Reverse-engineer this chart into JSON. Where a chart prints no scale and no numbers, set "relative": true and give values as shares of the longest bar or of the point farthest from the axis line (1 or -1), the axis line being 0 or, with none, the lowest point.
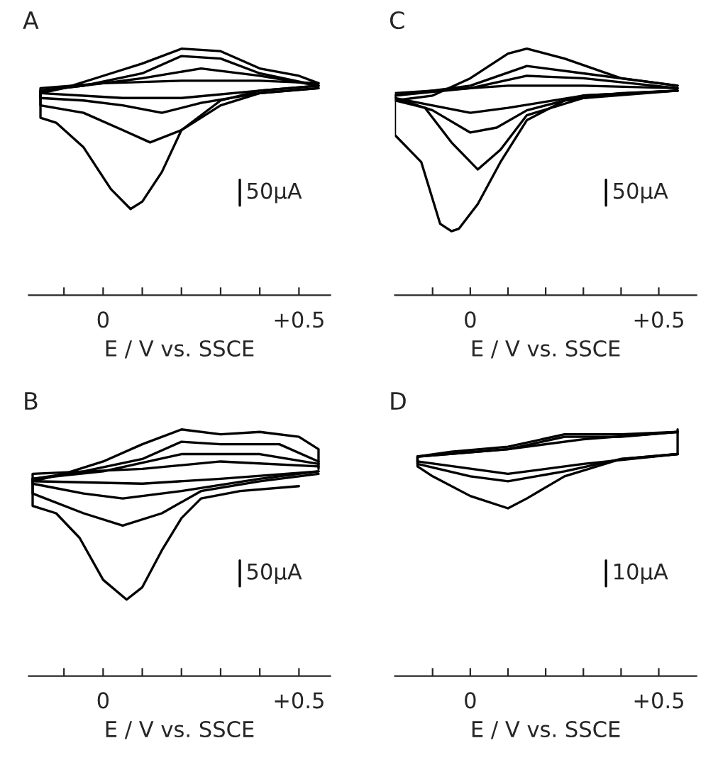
{
  "chart_data": [
    {
      "type": "line",
      "title": "A",
      "xlabel": "E / V vs. SSCE",
      "relative": true,
      "xlim": [
        -0.19,
        0.58
      ],
      "xticks": [
        {
          "value": -0.1,
          "label": null
        },
        0,
        {
          "value": 0.1,
          "label": null
        },
        {
          "value": 0.2,
          "label": null
        },
        {
          "value": 0.3,
          "label": null
        },
        {
          "value": 0.4,
          "label": null
        },
        {
          "value": 0.5,
          "label": "+0.5"
        }
      ],
      "grid": false,
      "legend": false,
      "marker": "none",
      "line_style": "solid",
      "annotations": [
        "50μA"
      ],
      "series": [
        {
          "color": "#000000",
          "x": [
            0.55,
            0.4,
            0.3,
            0.2,
            0.15,
            0.1,
            0.07,
            0.02,
            -0.05,
            -0.12,
            -0.16,
            -0.16,
            -0.1,
            0.0,
            0.1,
            0.2,
            0.3,
            0.4,
            0.5,
            0.55
          ],
          "values": [
            0.85,
            0.83,
            0.79,
            0.67,
            0.5,
            0.38,
            0.35,
            0.43,
            0.6,
            0.7,
            0.72,
            0.82,
            0.84,
            0.89,
            0.94,
            1.0,
            0.99,
            0.92,
            0.89,
            0.86
          ]
        },
        {
          "color": "#000000",
          "x": [
            0.55,
            0.4,
            0.3,
            0.2,
            0.12,
            0.05,
            -0.05,
            -0.16,
            -0.16,
            -0.05,
            0.1,
            0.2,
            0.3,
            0.4,
            0.55
          ],
          "values": [
            0.84,
            0.82,
            0.77,
            0.67,
            0.62,
            0.67,
            0.74,
            0.77,
            0.83,
            0.85,
            0.9,
            0.97,
            0.96,
            0.9,
            0.85
          ]
        },
        {
          "color": "#000000",
          "x": [
            0.55,
            0.4,
            0.25,
            0.15,
            0.05,
            -0.05,
            -0.16,
            -0.16,
            -0.05,
            0.1,
            0.25,
            0.4,
            0.55
          ],
          "values": [
            0.84,
            0.82,
            0.78,
            0.74,
            0.77,
            0.79,
            0.8,
            0.83,
            0.85,
            0.88,
            0.92,
            0.89,
            0.85
          ]
        },
        {
          "color": "#000000",
          "x": [
            0.55,
            0.4,
            0.2,
            0.05,
            -0.16,
            -0.16,
            0.0,
            0.2,
            0.4,
            0.55
          ],
          "values": [
            0.85,
            0.83,
            0.8,
            0.8,
            0.82,
            0.84,
            0.86,
            0.87,
            0.87,
            0.86
          ]
        }
      ]
    },
    {
      "type": "line",
      "title": "C",
      "xlabel": "E / V vs. SSCE",
      "relative": true,
      "xlim": [
        -0.2,
        0.6
      ],
      "xticks": [
        {
          "value": -0.1,
          "label": null
        },
        0,
        {
          "value": 0.1,
          "label": null
        },
        {
          "value": 0.2,
          "label": null
        },
        {
          "value": 0.3,
          "label": null
        },
        {
          "value": 0.4,
          "label": null
        },
        {
          "value": 0.5,
          "label": "+0.5"
        }
      ],
      "grid": false,
      "legend": false,
      "marker": "none",
      "line_style": "solid",
      "annotations": [
        "50μA"
      ],
      "series": [
        {
          "color": "#000000",
          "x": [
            0.55,
            0.4,
            0.25,
            0.15,
            0.08,
            0.02,
            -0.03,
            -0.05,
            -0.08,
            -0.13,
            -0.2,
            -0.2,
            -0.1,
            0.0,
            0.1,
            0.15,
            0.25,
            0.4,
            0.55
          ],
          "values": [
            0.83,
            0.82,
            0.79,
            0.71,
            0.54,
            0.37,
            0.27,
            0.26,
            0.29,
            0.54,
            0.65,
            0.79,
            0.81,
            0.88,
            0.98,
            1.0,
            0.96,
            0.88,
            0.85
          ]
        },
        {
          "color": "#000000",
          "x": [
            0.55,
            0.3,
            0.15,
            0.08,
            0.02,
            -0.05,
            -0.12,
            -0.2,
            -0.2,
            0.0,
            0.15,
            0.3,
            0.55
          ],
          "values": [
            0.83,
            0.8,
            0.73,
            0.59,
            0.51,
            0.62,
            0.76,
            0.79,
            0.81,
            0.85,
            0.93,
            0.9,
            0.85
          ]
        },
        {
          "color": "#000000",
          "x": [
            0.55,
            0.3,
            0.15,
            0.07,
            0.0,
            -0.1,
            -0.2,
            -0.2,
            0.0,
            0.15,
            0.3,
            0.55
          ],
          "values": [
            0.83,
            0.81,
            0.75,
            0.68,
            0.66,
            0.75,
            0.8,
            0.81,
            0.84,
            0.89,
            0.88,
            0.84
          ]
        },
        {
          "color": "#000000",
          "x": [
            0.55,
            0.3,
            0.1,
            0.0,
            -0.2,
            -0.2,
            0.1,
            0.3,
            0.55
          ],
          "values": [
            0.83,
            0.81,
            0.76,
            0.74,
            0.8,
            0.82,
            0.85,
            0.85,
            0.84
          ]
        }
      ]
    },
    {
      "type": "line",
      "title": "B",
      "xlabel": "E / V vs. SSCE",
      "relative": true,
      "xlim": [
        -0.19,
        0.58
      ],
      "xticks": [
        {
          "value": -0.1,
          "label": null
        },
        0,
        {
          "value": 0.1,
          "label": null
        },
        {
          "value": 0.2,
          "label": null
        },
        {
          "value": 0.3,
          "label": null
        },
        {
          "value": 0.4,
          "label": null
        },
        {
          "value": 0.5,
          "label": "+0.5"
        }
      ],
      "grid": false,
      "legend": false,
      "marker": "none",
      "line_style": "solid",
      "annotations": [
        "50μA"
      ],
      "series": [
        {
          "color": "#000000",
          "x": [
            0.5,
            0.35,
            0.25,
            0.2,
            0.15,
            0.1,
            0.06,
            0.0,
            -0.06,
            -0.12,
            -0.18,
            -0.18,
            -0.1,
            0.0,
            0.1,
            0.2,
            0.3,
            0.4,
            0.5,
            0.55,
            0.55
          ],
          "values": [
            0.77,
            0.75,
            0.72,
            0.64,
            0.51,
            0.36,
            0.31,
            0.39,
            0.56,
            0.66,
            0.69,
            0.79,
            0.82,
            0.87,
            0.94,
            1.0,
            0.98,
            0.99,
            0.97,
            0.92,
            0.84
          ]
        },
        {
          "color": "#000000",
          "x": [
            0.55,
            0.4,
            0.25,
            0.15,
            0.05,
            -0.05,
            -0.18,
            -0.18,
            -0.05,
            0.1,
            0.2,
            0.3,
            0.45,
            0.55
          ],
          "values": [
            0.82,
            0.79,
            0.75,
            0.66,
            0.61,
            0.66,
            0.74,
            0.8,
            0.83,
            0.88,
            0.95,
            0.94,
            0.94,
            0.87
          ]
        },
        {
          "color": "#000000",
          "x": [
            0.55,
            0.4,
            0.2,
            0.05,
            -0.05,
            -0.18,
            -0.18,
            0.0,
            0.2,
            0.4,
            0.55
          ],
          "values": [
            0.83,
            0.8,
            0.75,
            0.72,
            0.74,
            0.78,
            0.8,
            0.83,
            0.9,
            0.9,
            0.86
          ]
        },
        {
          "color": "#000000",
          "x": [
            0.55,
            0.3,
            0.1,
            -0.18,
            -0.18,
            0.1,
            0.3,
            0.55
          ],
          "values": [
            0.83,
            0.8,
            0.78,
            0.79,
            0.82,
            0.84,
            0.87,
            0.85
          ]
        }
      ]
    },
    {
      "type": "line",
      "title": "D",
      "xlabel": "E / V vs. SSCE",
      "relative": true,
      "xlim": [
        -0.2,
        0.6
      ],
      "xticks": [
        {
          "value": -0.1,
          "label": null
        },
        0,
        {
          "value": 0.1,
          "label": null
        },
        {
          "value": 0.2,
          "label": null
        },
        {
          "value": 0.3,
          "label": null
        },
        {
          "value": 0.4,
          "label": null
        },
        {
          "value": 0.5,
          "label": "+0.5"
        }
      ],
      "grid": false,
      "legend": false,
      "marker": "none",
      "line_style": "solid",
      "annotations": [
        "10μA"
      ],
      "series": [
        {
          "color": "#000000",
          "x": [
            0.55,
            0.55,
            0.4,
            0.25,
            0.15,
            0.1,
            0.0,
            -0.1,
            -0.14,
            -0.14,
            -0.05,
            0.1,
            0.25,
            0.4,
            0.55
          ],
          "values": [
            1.0,
            0.9,
            0.88,
            0.81,
            0.72,
            0.68,
            0.73,
            0.81,
            0.85,
            0.89,
            0.91,
            0.93,
            0.98,
            0.98,
            0.99
          ]
        },
        {
          "color": "#000000",
          "x": [
            0.55,
            0.4,
            0.25,
            0.1,
            0.0,
            -0.14,
            -0.14,
            0.1,
            0.25,
            0.4,
            0.55
          ],
          "values": [
            0.9,
            0.88,
            0.83,
            0.79,
            0.81,
            0.86,
            0.89,
            0.92,
            0.97,
            0.97,
            0.99
          ]
        },
        {
          "color": "#000000",
          "x": [
            0.55,
            0.3,
            0.1,
            -0.14,
            -0.14,
            0.1,
            0.3,
            0.55
          ],
          "values": [
            0.9,
            0.86,
            0.82,
            0.87,
            0.89,
            0.92,
            0.96,
            0.99
          ]
        }
      ]
    }
  ]
}
